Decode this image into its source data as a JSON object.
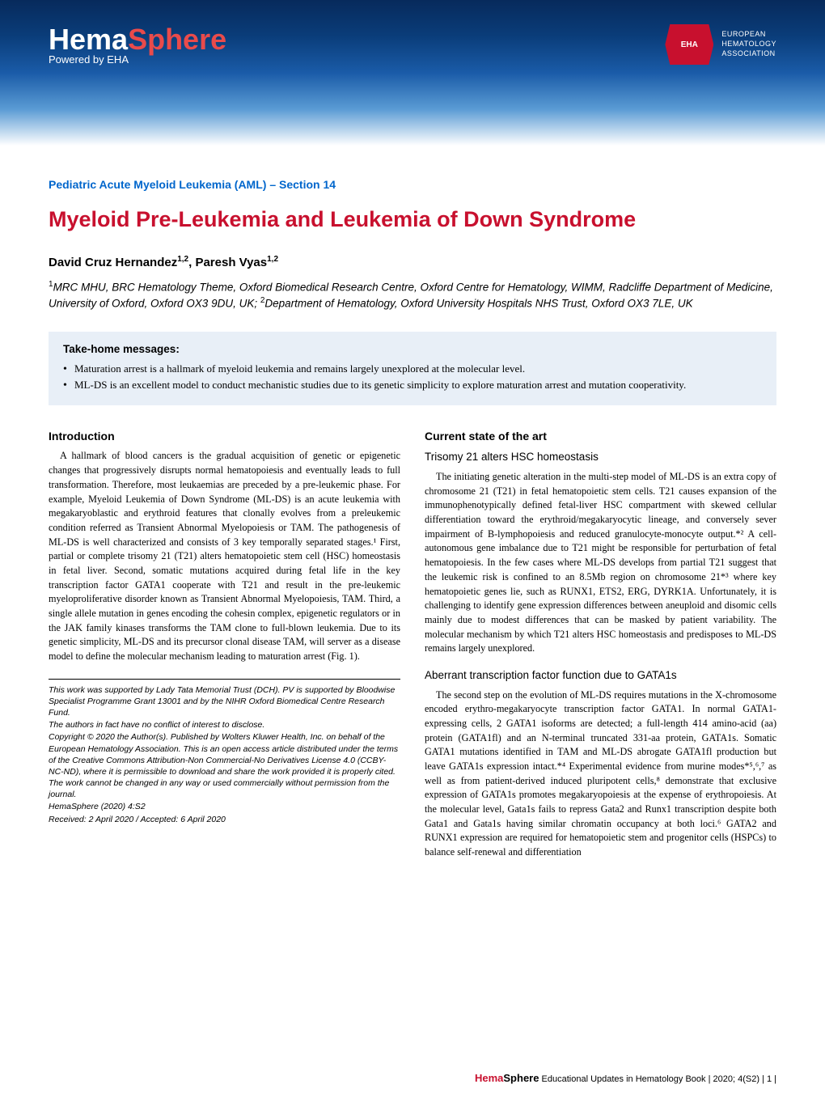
{
  "header": {
    "logo_hema": "Hema",
    "logo_sphere": "Sphere",
    "powered_by": "Powered by EHA",
    "eha_badge": "EHA",
    "eha_text_l1": "EUROPEAN",
    "eha_text_l2": "HEMATOLOGY",
    "eha_text_l3": "ASSOCIATION",
    "gradient_colors": [
      "#072a5c",
      "#0a3d7a",
      "#1a5ba8",
      "#5a9bd4",
      "#ffffff"
    ],
    "eha_red": "#c8102e"
  },
  "section_label": "Pediatric Acute Myeloid Leukemia (AML) – Section 14",
  "title": "Myeloid Pre-Leukemia and Leukemia of Down Syndrome",
  "authors_html": "David Cruz Hernandez<sup>1,2</sup>, Paresh Vyas<sup>1,2</sup>",
  "affiliations_html": "<sup>1</sup>MRC MHU, BRC Hematology Theme, Oxford Biomedical Research Centre, Oxford Centre for Hematology, WIMM, Radcliffe Department of Medicine, University of Oxford, Oxford OX3 9DU, UK; <sup>2</sup>Department of Hematology, Oxford University Hospitals NHS Trust, Oxford OX3 7LE, UK",
  "takehome": {
    "title": "Take-home messages:",
    "items": [
      "Maturation arrest is a hallmark of myeloid leukemia and remains largely unexplored at the molecular level.",
      "ML-DS is an excellent model to conduct mechanistic studies due to its genetic simplicity to explore maturation arrest and mutation cooperativity."
    ],
    "bg_color": "#e8eff7"
  },
  "left_col": {
    "h_intro": "Introduction",
    "p_intro": "A hallmark of blood cancers is the gradual acquisition of genetic or epigenetic changes that progressively disrupts normal hematopoiesis and eventually leads to full transformation. Therefore, most leukaemias are preceded by a pre-leukemic phase. For example, Myeloid Leukemia of Down Syndrome (ML-DS) is an acute leukemia with megakaryoblastic and erythroid features that clonally evolves from a preleukemic condition referred as Transient Abnormal Myelopoiesis or TAM. The pathogenesis of ML-DS is well characterized and consists of 3 key temporally separated stages.¹ First, partial or complete trisomy 21 (T21) alters hematopoietic stem cell (HSC) homeostasis in fetal liver. Second, somatic mutations acquired during fetal life in the key transcription factor GATA1 cooperate with T21 and result in the pre-leukemic myeloproliferative disorder known as Transient Abnormal Myelopoiesis, TAM. Third, a single allele mutation in genes encoding the cohesin complex, epigenetic regulators or in the JAK family kinases transforms the TAM clone to full-blown leukemia. Due to its genetic simplicity, ML-DS and its precursor clonal disease TAM, will server as a disease model to define the molecular mechanism leading to maturation arrest (Fig. 1).",
    "footnotes": [
      "This work was supported by Lady Tata Memorial Trust (DCH). PV is supported by Bloodwise Specialist Programme Grant 13001 and by the NIHR Oxford Biomedical Centre Research Fund.",
      "The authors in fact have no conflict of interest to disclose.",
      "Copyright © 2020 the Author(s). Published by Wolters Kluwer Health, Inc. on behalf of the European Hematology Association. This is an open access article distributed under the terms of the Creative Commons Attribution-Non Commercial-No Derivatives License 4.0 (CCBY-NC-ND), where it is permissible to download and share the work provided it is properly cited. The work cannot be changed in any way or used commercially without permission from the journal.",
      "HemaSphere (2020) 4:S2",
      "Received: 2 April 2020 / Accepted: 6 April 2020"
    ]
  },
  "right_col": {
    "h_state": "Current state of the art",
    "h_trisomy": "Trisomy 21 alters HSC homeostasis",
    "p_trisomy": "The initiating genetic alteration in the multi-step model of ML-DS is an extra copy of chromosome 21 (T21) in fetal hematopoietic stem cells. T21 causes expansion of the immunophenotypically defined fetal-liver HSC compartment with skewed cellular differentiation toward the erythroid/megakaryocytic lineage, and conversely sever impairment of B-lymphopoiesis and reduced granulocyte-monocyte output.*² A cell-autonomous gene imbalance due to T21 might be responsible for perturbation of fetal hematopoiesis. In the few cases where ML-DS develops from partial T21 suggest that the leukemic risk is confined to an 8.5Mb region on chromosome 21*³ where key hematopoietic genes lie, such as RUNX1, ETS2, ERG, DYRK1A. Unfortunately, it is challenging to identify gene expression differences between aneuploid and disomic cells mainly due to modest differences that can be masked by patient variability. The molecular mechanism by which T21 alters HSC homeostasis and predisposes to ML-DS remains largely unexplored.",
    "h_gata": "Aberrant transcription factor function due to GATA1s",
    "p_gata": "The second step on the evolution of ML-DS requires mutations in the X-chromosome encoded erythro-megakaryocyte transcription factor GATA1. In normal GATA1-expressing cells, 2 GATA1 isoforms are detected; a full-length 414 amino-acid (aa) protein (GATA1fl) and an N-terminal truncated 331-aa protein, GATA1s. Somatic GATA1 mutations identified in TAM and ML-DS abrogate GATA1fl production but leave GATA1s expression intact.*⁴ Experimental evidence from murine modes*⁵,⁶,⁷ as well as from patient-derived induced pluripotent cells,⁸ demonstrate that exclusive expression of GATA1s promotes megakaryopoiesis at the expense of erythropoiesis. At the molecular level, Gata1s fails to repress Gata2 and Runx1 transcription despite both Gata1 and Gata1s having similar chromatin occupancy at both loci.⁶ GATA2 and RUNX1 expression are required for hematopoietic stem and progenitor cells (HSPCs) to balance self-renewal and differentiation"
  },
  "footer": {
    "hema": "Hema",
    "sphere": "Sphere",
    "tail": " Educational Updates in Hematology Book | 2020; 4(S2) | 1 |"
  },
  "colors": {
    "title_red": "#c8102e",
    "section_blue": "#0066cc",
    "body_text": "#000000",
    "background": "#ffffff"
  },
  "typography": {
    "title_size_pt": 20,
    "section_label_pt": 10.5,
    "body_pt": 9,
    "footnote_pt": 8
  }
}
